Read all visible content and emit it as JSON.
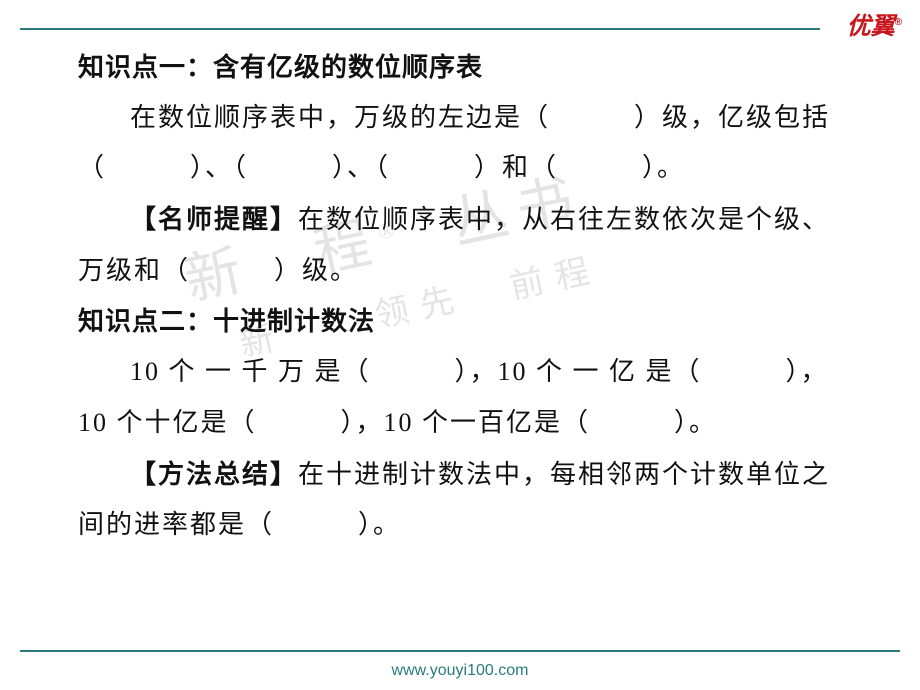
{
  "logo_text": "优翼",
  "logo_mark": "®",
  "top_line_color": "#2a7b7b",
  "section1": {
    "heading": "知识点一：含有亿级的数位顺序表",
    "body_part1": "在数位顺序表中，万级的左边是（　　　）级，亿级包括（　　　）、（　　　）、（　　　）和（　　　）。",
    "tip_label": "【名师提醒】",
    "tip_body": "在数位顺序表中，从右往左数依次是个级、万级和（　　　）级。"
  },
  "section2": {
    "heading": "知识点二：十进制计数法",
    "body": "10 个 一 千 万 是（　　　），10 个 一 亿 是（　　　），10 个十亿是（　　　），10 个一百亿是（　　　）。",
    "tip_label": "【方法总结】",
    "tip_body": "在十进制计数法中，每相邻两个计数单位之间的进率都是（　　　）。"
  },
  "watermark": {
    "line1": "新　程",
    "line1_mark": "®",
    "line2": "丛书",
    "line3": "新　　领先　前程"
  },
  "footer_url": "www.youyi100.com"
}
